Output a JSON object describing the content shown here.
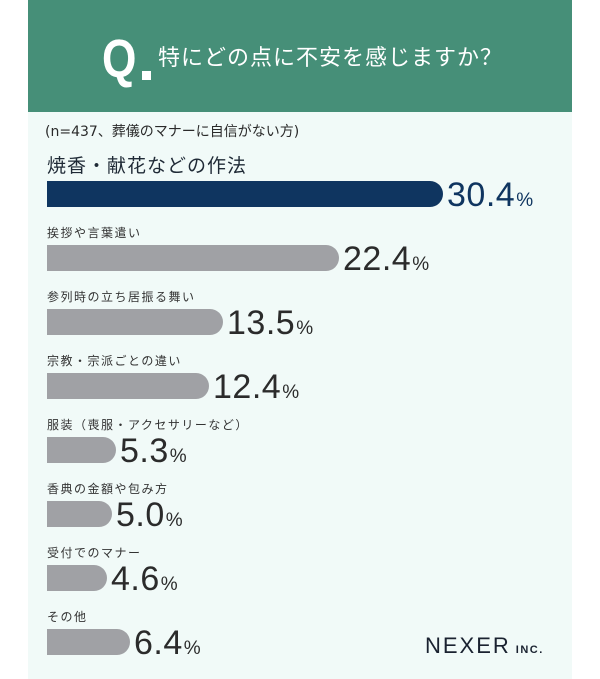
{
  "header": {
    "q_letter": "Q",
    "title": "特にどの点に不安を感じますか？",
    "background_color": "#468f78"
  },
  "note": "(n=437、葬儀のマナーに自信がない方)",
  "logo": {
    "main": "NEXER",
    "suffix": "INC."
  },
  "colors": {
    "highlight_bar": "#0f3560",
    "bar": "#a0a1a5",
    "panel": "#f1faf8"
  },
  "chart_data": {
    "type": "bar",
    "orientation": "horizontal",
    "title": "特にどの点に不安を感じますか？",
    "subtitle": "(n=437、葬儀のマナーに自信がない方)",
    "unit": "%",
    "categories": [
      "焼香・献花などの作法",
      "挨拶や言葉遣い",
      "参列時の立ち居振る舞い",
      "宗教・宗派ごとの違い",
      "服装（喪服・アクセサリーなど）",
      "香典の金額や包み方",
      "受付でのマナー",
      "その他"
    ],
    "values": [
      30.4,
      22.4,
      13.5,
      12.4,
      5.3,
      5.0,
      4.6,
      6.4
    ],
    "labels": [
      "30.4",
      "22.4",
      "13.5",
      "12.4",
      "5.3",
      "5.0",
      "4.6",
      "6.4"
    ],
    "highlighted_index": 0,
    "grid": false,
    "legend": "none"
  }
}
